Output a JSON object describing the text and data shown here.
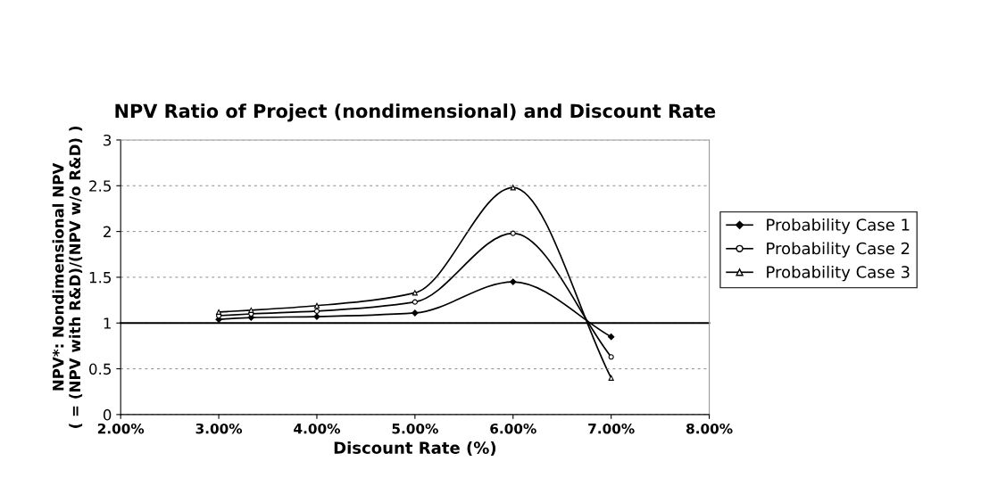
{
  "chart_data": {
    "type": "line",
    "title": "NPV Ratio of Project (nondimensional) and Discount Rate",
    "xlabel": "Discount Rate (%)",
    "ylabel": "NPV*: Nondimensional NPV\n( = (NPV with R&D)/(NPV w/o R&D) )",
    "x": [
      3.0,
      3.33,
      4.0,
      5.0,
      6.0,
      7.0
    ],
    "series": [
      {
        "name": "Probability Case 1",
        "color": "#000000",
        "marker": "diamond",
        "values": [
          1.04,
          1.06,
          1.07,
          1.11,
          1.45,
          0.85
        ]
      },
      {
        "name": "Probability Case 2",
        "color": "#000000",
        "marker": "circle",
        "values": [
          1.08,
          1.1,
          1.13,
          1.23,
          1.98,
          0.63
        ]
      },
      {
        "name": "Probability Case 3",
        "color": "#000000",
        "marker": "triangle",
        "values": [
          1.12,
          1.14,
          1.19,
          1.33,
          2.48,
          0.4
        ]
      }
    ],
    "xlim": [
      2,
      8
    ],
    "xticks": [
      {
        "value": 2,
        "label": "2.00%"
      },
      {
        "value": 3,
        "label": "3.00%"
      },
      {
        "value": 4,
        "label": "4.00%"
      },
      {
        "value": 5,
        "label": "5.00%"
      },
      {
        "value": 6,
        "label": "6.00%"
      },
      {
        "value": 7,
        "label": "7.00%"
      },
      {
        "value": 8,
        "label": "8.00%"
      }
    ],
    "ylim": [
      0,
      3
    ],
    "yticks": [
      0,
      0.5,
      1,
      1.5,
      2,
      2.5,
      3
    ],
    "ref_lines": [
      {
        "axis": "y",
        "value": 1,
        "color": "#000000"
      }
    ],
    "grid": "y",
    "legend": "right",
    "line_style": "solid"
  }
}
